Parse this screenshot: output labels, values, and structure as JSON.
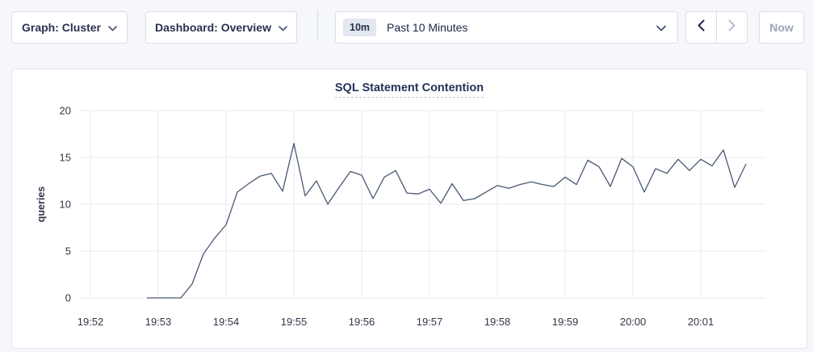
{
  "toolbar": {
    "graph_dropdown": {
      "label": "Graph: Cluster"
    },
    "dashboard_dropdown": {
      "label": "Dashboard: Overview"
    },
    "time_selector": {
      "badge": "10m",
      "label": "Past 10 Minutes"
    },
    "now_button": {
      "label": "Now",
      "disabled": true
    },
    "prev_enabled": true,
    "next_enabled": false
  },
  "chart_data": {
    "type": "line",
    "title": "SQL Statement Contention",
    "xlabel": "",
    "ylabel": "queries",
    "ylim": [
      0,
      20
    ],
    "yticks": [
      0,
      5,
      10,
      15,
      20
    ],
    "x_tick_labels": [
      "19:52",
      "19:53",
      "19:54",
      "19:55",
      "19:56",
      "19:57",
      "19:58",
      "19:59",
      "20:00",
      "20:01"
    ],
    "x_unit": "seconds after 19:52:00, one tick per minute",
    "grid": true,
    "legend": "none",
    "series": [
      {
        "name": "queries",
        "color": "#475872",
        "points": [
          [
            50,
            0
          ],
          [
            60,
            0
          ],
          [
            70,
            0
          ],
          [
            80,
            0
          ],
          [
            90,
            1.5
          ],
          [
            100,
            4.7
          ],
          [
            110,
            6.4
          ],
          [
            120,
            7.8
          ],
          [
            130,
            11.3
          ],
          [
            140,
            12.2
          ],
          [
            150,
            13.0
          ],
          [
            160,
            13.3
          ],
          [
            170,
            11.4
          ],
          [
            180,
            16.5
          ],
          [
            190,
            10.9
          ],
          [
            200,
            12.5
          ],
          [
            210,
            10.0
          ],
          [
            220,
            11.8
          ],
          [
            230,
            13.5
          ],
          [
            240,
            13.1
          ],
          [
            250,
            10.6
          ],
          [
            260,
            12.9
          ],
          [
            270,
            13.6
          ],
          [
            280,
            11.2
          ],
          [
            290,
            11.1
          ],
          [
            300,
            11.6
          ],
          [
            310,
            10.1
          ],
          [
            320,
            12.2
          ],
          [
            330,
            10.4
          ],
          [
            340,
            10.6
          ],
          [
            350,
            11.3
          ],
          [
            360,
            12.0
          ],
          [
            370,
            11.7
          ],
          [
            380,
            12.1
          ],
          [
            390,
            12.4
          ],
          [
            400,
            12.1
          ],
          [
            410,
            11.9
          ],
          [
            420,
            12.9
          ],
          [
            430,
            12.1
          ],
          [
            440,
            14.7
          ],
          [
            450,
            14.0
          ],
          [
            460,
            11.9
          ],
          [
            470,
            14.9
          ],
          [
            480,
            14.0
          ],
          [
            490,
            11.3
          ],
          [
            500,
            13.8
          ],
          [
            510,
            13.3
          ],
          [
            520,
            14.8
          ],
          [
            530,
            13.6
          ],
          [
            540,
            14.8
          ],
          [
            550,
            14.1
          ],
          [
            560,
            15.8
          ],
          [
            570,
            11.8
          ],
          [
            580,
            14.3
          ]
        ]
      }
    ]
  },
  "colors": {
    "page_bg": "#f5f7fa",
    "card_bg": "#ffffff",
    "control_border": "#d8dde8",
    "grid_line": "#e8eaf0",
    "series_line": "#475872",
    "title_text": "#26325a",
    "tick_text": "#30374a",
    "disabled": "#b8c1d2"
  }
}
